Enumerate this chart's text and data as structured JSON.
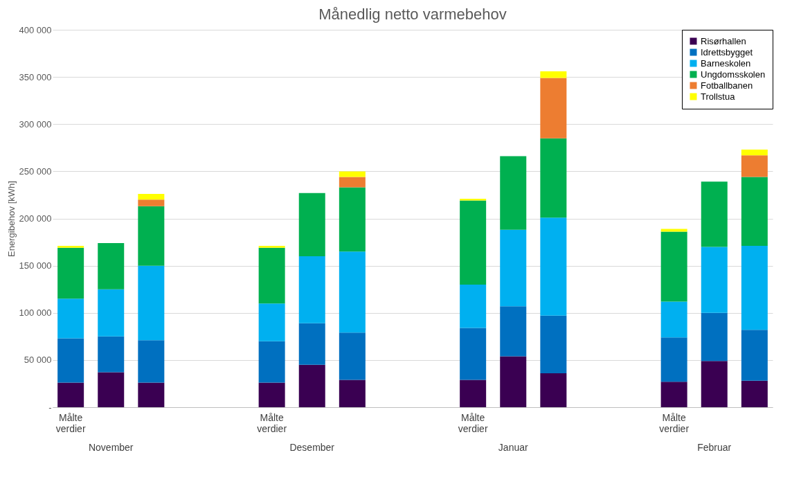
{
  "chart_data": {
    "type": "bar",
    "stacked": true,
    "title": "Månedlig netto varmebehov",
    "ylabel": "Energibehov [kWh]",
    "categories": [
      "Målte verdier",
      null,
      null,
      null,
      null,
      "Målte verdier",
      null,
      null,
      null,
      null,
      "Målte verdier",
      null,
      null,
      null,
      null,
      "Målte verdier",
      null,
      null
    ],
    "series": [
      {
        "name": "Risørhallen",
        "color": "#3a0052",
        "values": [
          26000,
          37000,
          26000,
          null,
          null,
          26000,
          45000,
          29000,
          null,
          null,
          29000,
          54000,
          36000,
          null,
          null,
          27000,
          49000,
          28000
        ]
      },
      {
        "name": "Idrettsbygget",
        "color": "#0070c0",
        "values": [
          47000,
          38000,
          45000,
          null,
          null,
          44000,
          44000,
          50000,
          null,
          null,
          55000,
          53000,
          61000,
          null,
          null,
          47000,
          51000,
          54000
        ]
      },
      {
        "name": "Barneskolen",
        "color": "#00b0f0",
        "values": [
          42000,
          50000,
          79000,
          null,
          null,
          40000,
          71000,
          86000,
          null,
          null,
          46000,
          81000,
          104000,
          null,
          null,
          38000,
          70000,
          89000
        ]
      },
      {
        "name": "Ungdomsskolen",
        "color": "#00b050",
        "values": [
          54000,
          49000,
          63000,
          null,
          null,
          59000,
          67000,
          68000,
          null,
          null,
          89000,
          78000,
          84000,
          null,
          null,
          74000,
          69000,
          73000
        ]
      },
      {
        "name": "Fotballbanen",
        "color": "#ed7d31",
        "values": [
          null,
          null,
          7000,
          null,
          null,
          null,
          null,
          11000,
          null,
          null,
          null,
          null,
          64000,
          null,
          null,
          null,
          null,
          23000
        ]
      },
      {
        "name": "Trollstua",
        "color": "#ffff00",
        "values": [
          2000,
          null,
          6000,
          null,
          null,
          2000,
          null,
          6000,
          null,
          null,
          2000,
          null,
          7000,
          null,
          null,
          3000,
          null,
          6000
        ]
      }
    ],
    "ylim": [
      0,
      400000
    ],
    "yticks": [
      {
        "value": 0,
        "label": "-"
      },
      {
        "value": 50000,
        "label": "50 000"
      },
      {
        "value": 100000,
        "label": "100 000"
      },
      {
        "value": 150000,
        "label": "150 000"
      },
      {
        "value": 200000,
        "label": "200 000"
      },
      {
        "value": 250000,
        "label": "250 000"
      },
      {
        "value": 300000,
        "label": "300 000"
      },
      {
        "value": 350000,
        "label": "350 000"
      },
      {
        "value": 400000,
        "label": "400 000"
      }
    ],
    "grid": "y",
    "legend": "top right",
    "annotations": [
      "November",
      "Desember",
      "Januar",
      "Februar"
    ]
  }
}
